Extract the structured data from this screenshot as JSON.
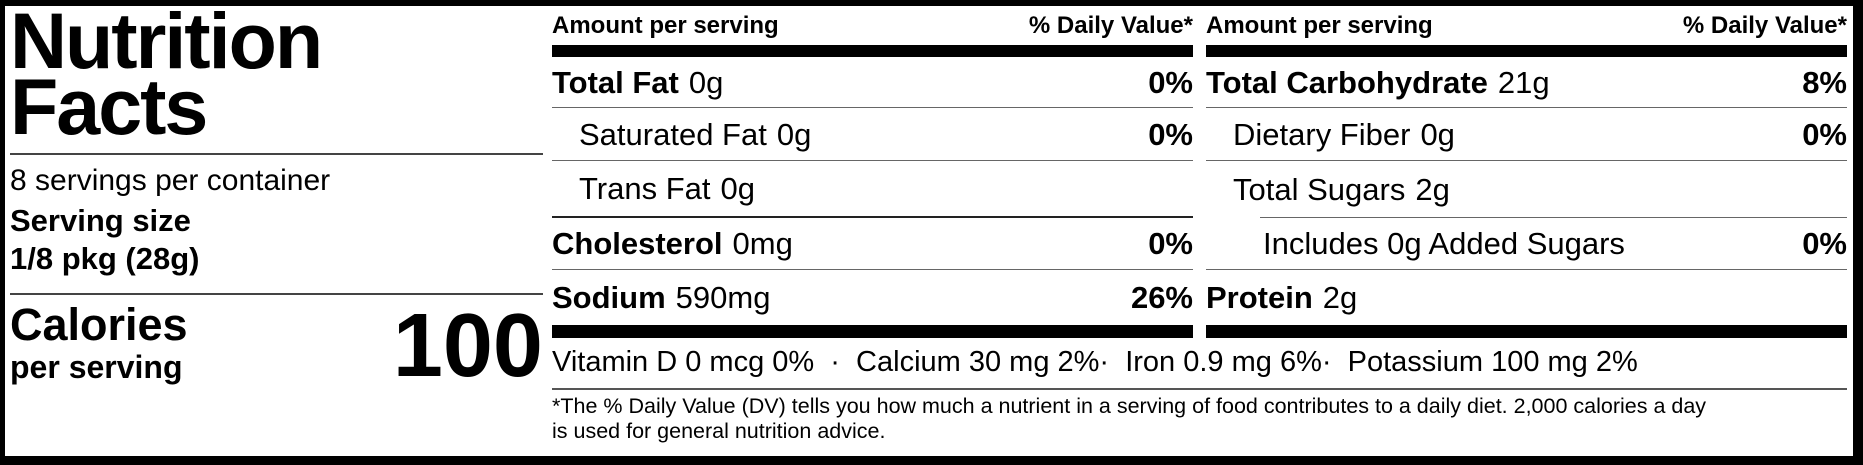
{
  "label": {
    "title_line1": "Nutrition",
    "title_line2": "Facts",
    "servings_per_container": "8 servings per container",
    "serving_size_label": "Serving size",
    "serving_size_value": "1/8 pkg (28g)",
    "calories_label": "Calories",
    "calories_sublabel": "per serving",
    "calories_value": "100"
  },
  "columns": [
    {
      "header_left": "Amount per serving",
      "header_right": "% Daily Value*",
      "rows": [
        {
          "name": "Total Fat",
          "amount": "0g",
          "dv": "0%"
        },
        {
          "name": "Saturated Fat",
          "amount": "0g",
          "dv": "0%"
        },
        {
          "name": "Trans Fat",
          "amount": "0g",
          "dv": ""
        },
        {
          "name": "Cholesterol",
          "amount": "0mg",
          "dv": "0%"
        },
        {
          "name": "Sodium",
          "amount": "590mg",
          "dv": "26%"
        }
      ]
    },
    {
      "header_left": "Amount per serving",
      "header_right": "% Daily Value*",
      "rows": [
        {
          "name": "Total Carbohydrate",
          "amount": "21g",
          "dv": "8%"
        },
        {
          "name": "Dietary Fiber",
          "amount": "0g",
          "dv": "0%"
        },
        {
          "name": "Total Sugars",
          "amount": "2g",
          "dv": ""
        },
        {
          "name": "Includes 0g Added Sugars",
          "amount": "",
          "dv": "0%"
        },
        {
          "name": "Protein",
          "amount": "2g",
          "dv": ""
        }
      ]
    }
  ],
  "micronutrients": {
    "line": "Vitamin D 0 mcg 0%  ·  Calcium 30 mg 2%·  Iron 0.9 mg 6%·  Potassium 100 mg 2%"
  },
  "footnote": {
    "line1": "*The % Daily Value (DV) tells you how much a nutrient in a serving of food contributes to a daily diet. 2,000 calories a day",
    "line2": "is used for general nutrition advice."
  }
}
